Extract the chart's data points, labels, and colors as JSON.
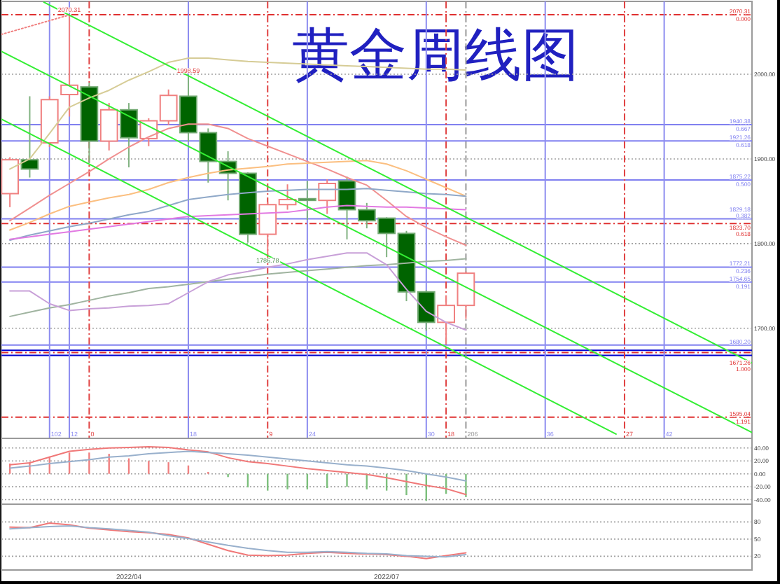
{
  "chart_data": [
    {
      "type": "candlestick",
      "title": "黄金周线图",
      "x": [
        "2022-02-18",
        "2022-02-25",
        "2022-03-04",
        "2022-03-11",
        "2022-03-18",
        "2022-03-25",
        "2022-04-01",
        "2022-04-08",
        "2022-04-15",
        "2022-04-22",
        "2022-04-29",
        "2022-05-06",
        "2022-05-13",
        "2022-05-20",
        "2022-05-27",
        "2022-06-03",
        "2022-06-10",
        "2022-06-17",
        "2022-06-24",
        "2022-07-01",
        "2022-07-08",
        "2022-07-15",
        "2022-07-22",
        "2022-07-29"
      ],
      "ohlc": [
        [
          1859,
          1902,
          1843,
          1899
        ],
        [
          1899,
          1974,
          1878,
          1888
        ],
        [
          1919,
          1974,
          1914,
          1970
        ],
        [
          1976,
          2070.31,
          1950,
          1987
        ],
        [
          1985,
          1990,
          1895,
          1921
        ],
        [
          1921,
          1966,
          1910,
          1958
        ],
        [
          1958,
          1966,
          1890,
          1925
        ],
        [
          1924,
          1948,
          1915,
          1945
        ],
        [
          1945,
          1982,
          1940,
          1975
        ],
        [
          1974,
          1998.59,
          1920,
          1931
        ],
        [
          1931,
          1936,
          1872,
          1897
        ],
        [
          1897,
          1909,
          1851,
          1883
        ],
        [
          1883,
          1884,
          1801,
          1811
        ],
        [
          1811,
          1849,
          1786.78,
          1846
        ],
        [
          1846,
          1870,
          1840,
          1852
        ],
        [
          1853,
          1874,
          1828,
          1851
        ],
        [
          1851,
          1876,
          1835,
          1871
        ],
        [
          1874,
          1879,
          1805,
          1840
        ],
        [
          1840,
          1848,
          1818,
          1827
        ],
        [
          1830,
          1831,
          1784,
          1812
        ],
        [
          1812,
          1815,
          1732,
          1743
        ],
        [
          1743,
          1745,
          1697,
          1707
        ],
        [
          1707,
          1739,
          1681,
          1727
        ],
        [
          1727,
          1767,
          1711,
          1765
        ]
      ],
      "colors": [
        "#f08080",
        "#006400",
        "#f08080",
        "#f08080",
        "#006400",
        "#f08080",
        "#006400",
        "#f08080",
        "#f08080",
        "#006400",
        "#006400",
        "#006400",
        "#006400",
        "#f08080",
        "#f08080",
        "#006400",
        "#f08080",
        "#006400",
        "#006400",
        "#006400",
        "#006400",
        "#006400",
        "#f08080",
        "#f08080"
      ],
      "series": [
        {
          "type": "line",
          "color": "#d6cc96",
          "values": [
            1888,
            1900,
            1930,
            1961,
            1972,
            1981,
            1993,
            2003,
            2014,
            2019,
            2019,
            2017,
            2015,
            2014,
            2013,
            2012,
            2011,
            2010,
            2009,
            2008,
            2007,
            2006,
            2006,
            2005
          ]
        },
        {
          "type": "line",
          "color": "#f09090",
          "values": [
            1827,
            1842,
            1857,
            1871,
            1885,
            1900,
            1914,
            1926,
            1936,
            1941,
            1941,
            1936,
            1924,
            1915,
            1906,
            1897,
            1888,
            1878,
            1869,
            1851,
            1832,
            1819,
            1808,
            1798
          ]
        },
        {
          "type": "line",
          "color": "#fbbf80",
          "values": [
            1816,
            1825,
            1835,
            1844,
            1849,
            1854,
            1858,
            1864,
            1872,
            1878,
            1883,
            1887,
            1889,
            1891,
            1894,
            1895,
            1896,
            1897,
            1898,
            1894,
            1886,
            1876,
            1866,
            1856
          ]
        },
        {
          "type": "line",
          "color": "#8fa8c8",
          "values": [
            1804,
            1810,
            1815,
            1820,
            1824,
            1829,
            1834,
            1838,
            1845,
            1852,
            1855,
            1858,
            1860,
            1862,
            1863,
            1864,
            1864,
            1864,
            1865,
            1863,
            1861,
            1859,
            1858,
            1856
          ]
        },
        {
          "type": "line",
          "color": "#e27ae2",
          "values": [
            1805,
            1808,
            1811,
            1814,
            1817,
            1820,
            1823,
            1826,
            1829,
            1832,
            1833,
            1834,
            1835,
            1836,
            1837,
            1840,
            1843,
            1845,
            1844,
            1843,
            1843,
            1842,
            1841,
            1840
          ]
        },
        {
          "type": "line",
          "color": "#a0b4a0",
          "values": [
            1714,
            1719,
            1724,
            1728,
            1733,
            1738,
            1742,
            1747,
            1749,
            1752,
            1755,
            1758,
            1761,
            1764,
            1766,
            1768,
            1770,
            1772,
            1774,
            1775,
            1777,
            1779,
            1780,
            1782
          ]
        },
        {
          "type": "line",
          "color": "#c8a0d8",
          "values": [
            1744,
            1744,
            1729,
            1721,
            1723,
            1724,
            1726,
            1727,
            1729,
            1742,
            1755,
            1763,
            1767,
            1772,
            1776,
            1781,
            1785,
            1789,
            1789,
            1775,
            1746,
            1720,
            1707,
            1698
          ]
        },
        {
          "type": "line",
          "color": "#f08080",
          "line_style": "dotted",
          "x": [
            "2022-02-15",
            "2022-03-11"
          ],
          "values": [
            2047,
            2070
          ]
        },
        {
          "type": "line",
          "color": "#33ee33",
          "x": [
            "2022-03-02",
            "2022-11-07"
          ],
          "values": [
            2085,
            1659
          ]
        },
        {
          "type": "line",
          "color": "#33ee33",
          "x": [
            "2022-02-15",
            "2022-11-07"
          ],
          "values": [
            2027,
            1577
          ]
        },
        {
          "type": "line",
          "color": "#33ee33",
          "x": [
            "2022-02-15",
            "2022-09-20"
          ],
          "values": [
            1947,
            1575
          ]
        }
      ],
      "xlim": [
        "2022-02-15",
        "2022-11-07"
      ],
      "ylim": [
        1570,
        2086
      ],
      "yticks": [
        {
          "value": 2000,
          "label": "2000.00"
        },
        {
          "value": 1900,
          "label": "1900.00"
        },
        {
          "value": 1800,
          "label": "1800.00"
        },
        {
          "value": 1700,
          "label": "1700.00"
        }
      ],
      "tick_labels": "y",
      "grid": "y",
      "ref_lines": [
        {
          "axis": "y",
          "value": 2070.31,
          "label": "2070.31\n0.000",
          "color": "#e03030",
          "line_style": "dashed"
        },
        {
          "axis": "y",
          "value": 1940.38,
          "label": "1940.38\n0.667",
          "color": "#8080f0"
        },
        {
          "axis": "y",
          "value": 1921.26,
          "label": "1921.26\n0.618",
          "color": "#8080f0"
        },
        {
          "axis": "y",
          "value": 1875.22,
          "label": "1875.22\n0.500",
          "color": "#8080f0"
        },
        {
          "axis": "y",
          "value": 1829.18,
          "label": "1829.18\n0.382",
          "color": "#8080f0"
        },
        {
          "axis": "y",
          "value": 1823.7,
          "label": "1823.70\n0.618",
          "color": "#e03030",
          "line_style": "dashed"
        },
        {
          "axis": "y",
          "value": 1772.21,
          "label": "1772.21\n0.236",
          "color": "#8080f0"
        },
        {
          "axis": "y",
          "value": 1754.65,
          "label": "1754.65\n0.191",
          "color": "#8080f0"
        },
        {
          "axis": "y",
          "value": 1680.2,
          "label": "1680.20",
          "color": "#8080f0"
        },
        {
          "axis": "y",
          "value": 1674,
          "color": "#0000d0"
        },
        {
          "axis": "y",
          "value": 1671.26,
          "label": "1671.26\n1.000",
          "color": "#e03030",
          "line_style": "dashed"
        },
        {
          "axis": "y",
          "value": 1668,
          "color": "#0000d0"
        },
        {
          "axis": "y",
          "value": 1595.04,
          "label": "1595.04\n1.191",
          "color": "#e03030",
          "line_style": "dashed"
        },
        {
          "axis": "x",
          "value": "2022-03-04",
          "label": "102",
          "color": "#8c8cf0"
        },
        {
          "axis": "x",
          "value": "2022-03-11",
          "label": "12",
          "color": "#8c8cf0"
        },
        {
          "axis": "x",
          "value": "2022-03-18",
          "label": "0",
          "color": "#e04040",
          "line_style": "dashed"
        },
        {
          "axis": "x",
          "value": "2022-04-22",
          "label": "18",
          "color": "#8c8cf0"
        },
        {
          "axis": "x",
          "value": "2022-05-20",
          "label": "9",
          "color": "#e04040",
          "line_style": "dashed"
        },
        {
          "axis": "x",
          "value": "2022-06-03",
          "label": "24",
          "color": "#8c8cf0"
        },
        {
          "axis": "x",
          "value": "2022-07-15",
          "label": "30",
          "color": "#8c8cf0"
        },
        {
          "axis": "x",
          "value": "2022-07-22",
          "label": "18",
          "color": "#e04040",
          "line_style": "dashed"
        },
        {
          "axis": "x",
          "value": "2022-07-29",
          "label": "206",
          "color": "#999999",
          "line_style": "dashed"
        },
        {
          "axis": "x",
          "value": "2022-08-26",
          "label": "36",
          "color": "#8c8cf0"
        },
        {
          "axis": "x",
          "value": "2022-09-23",
          "label": "27",
          "color": "#e04040",
          "line_style": "dashed"
        },
        {
          "axis": "x",
          "value": "2022-10-07",
          "label": "42",
          "color": "#8c8cf0"
        }
      ],
      "annotations": [
        {
          "text": "2070.31",
          "x": "2022-03-11",
          "y": 2070.31
        },
        {
          "text": "1998.59",
          "x": "2022-04-22",
          "y": 1998.59
        },
        {
          "text": "1786.78",
          "x": "2022-05-20",
          "y": 1786.78
        }
      ]
    },
    {
      "type": "bar",
      "x": [
        "2022-02-18",
        "2022-02-25",
        "2022-03-04",
        "2022-03-11",
        "2022-03-18",
        "2022-03-25",
        "2022-04-01",
        "2022-04-08",
        "2022-04-15",
        "2022-04-22",
        "2022-04-29",
        "2022-05-06",
        "2022-05-13",
        "2022-05-20",
        "2022-05-27",
        "2022-06-03",
        "2022-06-10",
        "2022-06-17",
        "2022-06-24",
        "2022-07-01",
        "2022-07-08",
        "2022-07-15",
        "2022-07-22",
        "2022-07-29"
      ],
      "series": [
        {
          "type": "bar",
          "values": [
            16,
            18,
            27,
            33,
            33,
            31,
            24,
            20,
            18,
            13,
            3,
            -5,
            -21,
            -26,
            -24,
            -24,
            -22,
            -20,
            -24,
            -26,
            -33,
            -42,
            -31,
            -36
          ],
          "colors": [
            "#f08080",
            "#f08080",
            "#f08080",
            "#f08080",
            "#f08080",
            "#f08080",
            "#f08080",
            "#f08080",
            "#f08080",
            "#f08080",
            "#f08080",
            "#7cbf7c",
            "#7cbf7c",
            "#7cbf7c",
            "#7cbf7c",
            "#7cbf7c",
            "#7cbf7c",
            "#7cbf7c",
            "#7cbf7c",
            "#7cbf7c",
            "#7cbf7c",
            "#7cbf7c",
            "#7cbf7c",
            "#7cbf7c"
          ]
        },
        {
          "type": "line",
          "color": "#f07878",
          "values": [
            14,
            17,
            26,
            35,
            38,
            40,
            41,
            42,
            41,
            37,
            34,
            25,
            19,
            16,
            12,
            8,
            5,
            2,
            -1,
            -6,
            -12,
            -18,
            -23,
            -32
          ]
        },
        {
          "type": "line",
          "color": "#98b0cc",
          "values": [
            9,
            12,
            16,
            19,
            22,
            26,
            28,
            31,
            33,
            35,
            33,
            31,
            29,
            26,
            23,
            20,
            17,
            14,
            12,
            9,
            5,
            0,
            -5,
            -11
          ]
        }
      ],
      "xlim": [
        "2022-02-15",
        "2022-11-07"
      ],
      "ylim": [
        -47,
        55
      ],
      "yticks": [
        {
          "value": 40,
          "label": "40.00"
        },
        {
          "value": 20,
          "label": "20.00"
        },
        {
          "value": 0,
          "label": "0.00"
        },
        {
          "value": -20,
          "label": "-20.00"
        },
        {
          "value": -40,
          "label": "-40.00"
        }
      ],
      "tick_labels": "y",
      "grid": "y"
    },
    {
      "type": "line",
      "x": [
        "2022-02-18",
        "2022-02-25",
        "2022-03-04",
        "2022-03-11",
        "2022-03-18",
        "2022-03-25",
        "2022-04-01",
        "2022-04-08",
        "2022-04-15",
        "2022-04-22",
        "2022-04-29",
        "2022-05-06",
        "2022-05-13",
        "2022-05-20",
        "2022-05-27",
        "2022-06-03",
        "2022-06-10",
        "2022-06-17",
        "2022-06-24",
        "2022-07-01",
        "2022-07-08",
        "2022-07-15",
        "2022-07-22",
        "2022-07-29"
      ],
      "series": [
        {
          "color": "#f07878",
          "values": [
            71,
            70,
            78,
            75,
            69,
            66,
            63,
            61,
            58,
            52,
            41,
            30,
            22,
            21,
            22,
            25,
            27,
            25,
            24,
            23,
            20,
            16,
            21,
            26
          ]
        },
        {
          "color": "#98b0cc",
          "values": [
            68,
            70,
            72,
            73,
            70,
            68,
            65,
            62,
            56,
            51,
            45,
            39,
            34,
            30,
            27,
            27,
            28,
            27,
            25,
            24,
            21,
            20,
            19,
            23
          ]
        }
      ],
      "xlim": [
        "2022-02-15",
        "2022-11-07"
      ],
      "ylim": [
        -4,
        111
      ],
      "yticks": [
        80,
        50,
        20
      ],
      "xticks": [
        {
          "value": "2022-04-01",
          "label": "2022/04"
        },
        {
          "value": "2022-07-01",
          "label": "2022/07"
        }
      ],
      "grid": "y"
    }
  ]
}
